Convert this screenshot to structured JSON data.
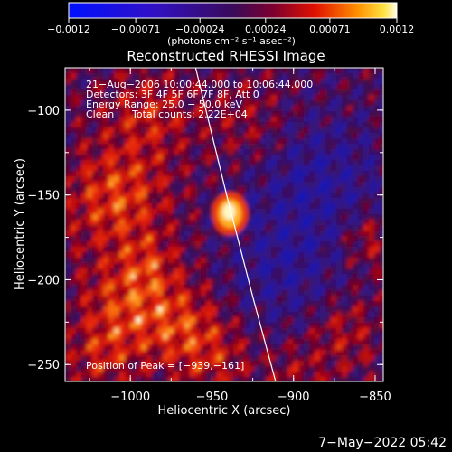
{
  "chart_data": {
    "type": "heatmap",
    "title": "Reconstructed RHESSI Image",
    "xlabel": "Heliocentric X (arcsec)",
    "ylabel": "Heliocentric Y (arcsec)",
    "xlim": [
      -1040,
      -845
    ],
    "ylim": [
      -260,
      -75
    ],
    "xticks": [
      -1000,
      -950,
      -900,
      -850
    ],
    "yticks": [
      -100,
      -150,
      -200,
      -250
    ],
    "xtick_labels": [
      "−1000",
      "−950",
      "−900",
      "−850"
    ],
    "ytick_labels": [
      "−100",
      "−150",
      "−200",
      "−250"
    ],
    "colorbar": {
      "range": [
        -0.0012,
        0.0012
      ],
      "ticks": [
        -0.0012,
        -0.00071,
        -0.00024,
        0.00024,
        0.00071,
        0.0012
      ],
      "tick_labels": [
        "−0.0012",
        "−0.00071",
        "−0.00024",
        "0.00024",
        "0.00071",
        "0.0012"
      ],
      "units_label": "(photons cm⁻² s⁻¹ asec⁻²)"
    },
    "annotations": {
      "time_range": "21−Aug−2006 10:00:44.000 to 10:06:44.000",
      "detectors": "Detectors: 3F 4F 5F 6F 7F 8F, Att 0",
      "energy": "Energy Range: 25.0 − 50.0 keV",
      "clean_label": "Clean",
      "total_counts": "Total counts: 2.22E+04",
      "peak": "Position of Peak = [−939,−161]"
    },
    "peak": {
      "x": -939,
      "y": -161
    },
    "limb_points": [
      [
        -960,
        -75
      ],
      [
        -941,
        -150
      ],
      [
        -925,
        -210
      ],
      [
        -911,
        -260
      ]
    ]
  },
  "footer_date": "7−May−2022 05:42"
}
